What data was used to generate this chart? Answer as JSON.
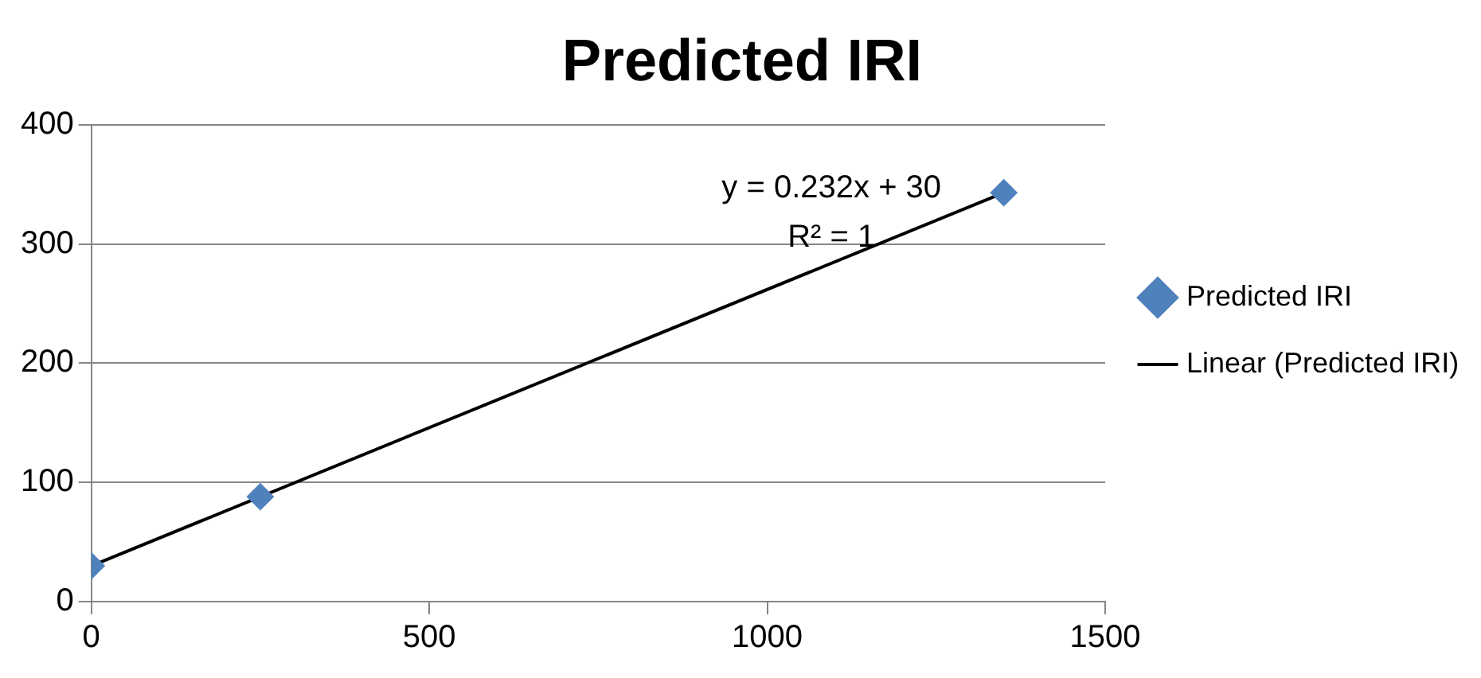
{
  "chart_data": {
    "type": "scatter",
    "title": "Predicted IRI",
    "series": [
      {
        "name": "Predicted IRI",
        "color": "#4f81bd",
        "x": [
          0,
          250,
          1350
        ],
        "values": [
          30,
          88,
          343
        ],
        "marker": "diamond"
      },
      {
        "name": "Linear (Predicted IRI)",
        "type": "line",
        "color": "#000000",
        "x": [
          0,
          1350
        ],
        "values": [
          30,
          343
        ],
        "marker": "none",
        "line_style": "solid"
      }
    ],
    "xlim": [
      0,
      1500
    ],
    "xticks": [
      0,
      500,
      1000,
      1500
    ],
    "ylim": [
      0,
      400
    ],
    "yticks": [
      0,
      100,
      200,
      300,
      400
    ],
    "grid": "y",
    "legend": "right",
    "annotations": [
      "y = 0.232x + 30",
      "R² = 1"
    ]
  }
}
